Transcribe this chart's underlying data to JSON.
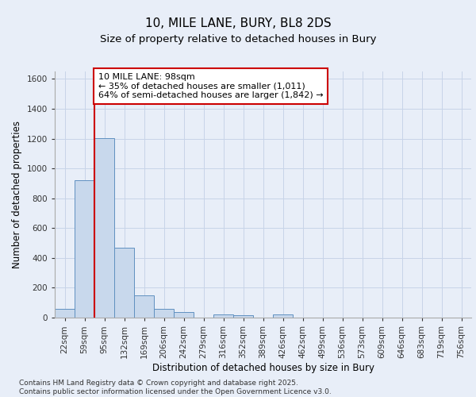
{
  "title_line1": "10, MILE LANE, BURY, BL8 2DS",
  "title_line2": "Size of property relative to detached houses in Bury",
  "xlabel": "Distribution of detached houses by size in Bury",
  "ylabel": "Number of detached properties",
  "categories": [
    "22sqm",
    "59sqm",
    "95sqm",
    "132sqm",
    "169sqm",
    "206sqm",
    "242sqm",
    "279sqm",
    "316sqm",
    "352sqm",
    "389sqm",
    "426sqm",
    "462sqm",
    "499sqm",
    "536sqm",
    "573sqm",
    "609sqm",
    "646sqm",
    "683sqm",
    "719sqm",
    "756sqm"
  ],
  "bar_values": [
    60,
    920,
    1205,
    470,
    150,
    60,
    35,
    0,
    20,
    15,
    0,
    20,
    0,
    0,
    0,
    0,
    0,
    0,
    0,
    0,
    0
  ],
  "bar_color": "#c8d8ec",
  "bar_edge_color": "#6090c0",
  "grid_color": "#c8d4e8",
  "background_color": "#e8eef8",
  "fig_background_color": "#e8eef8",
  "vline_x_index": 1.5,
  "annotation_box_text": "10 MILE LANE: 98sqm\n← 35% of detached houses are smaller (1,011)\n64% of semi-detached houses are larger (1,842) →",
  "vline_color": "#cc0000",
  "annotation_box_color": "#cc0000",
  "footnote": "Contains HM Land Registry data © Crown copyright and database right 2025.\nContains public sector information licensed under the Open Government Licence v3.0.",
  "ylim": [
    0,
    1650
  ],
  "yticks": [
    0,
    200,
    400,
    600,
    800,
    1000,
    1200,
    1400,
    1600
  ],
  "title_fontsize": 11,
  "subtitle_fontsize": 9.5,
  "axis_label_fontsize": 8.5,
  "tick_fontsize": 7.5,
  "annotation_fontsize": 8,
  "footnote_fontsize": 6.5
}
